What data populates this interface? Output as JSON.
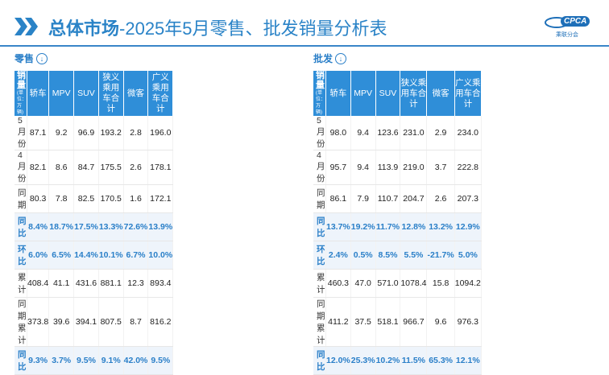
{
  "header": {
    "title_bold": "总体市场",
    "title_rest": "-2025年5月零售、批发销量分析表",
    "logo_text": "CPCA",
    "logo_sub": "乘联分会"
  },
  "retail": {
    "section_title": "零售",
    "col_header_first": "销量",
    "unit": "(单位：万辆)",
    "columns": [
      "轿车",
      "MPV",
      "SUV",
      "狭义乘用车合计",
      "微客",
      "广义乘用车合计"
    ],
    "rows": [
      {
        "label": "5月份",
        "values": [
          "87.1",
          "9.2",
          "96.9",
          "193.2",
          "2.8",
          "196.0"
        ]
      },
      {
        "label": "4月份",
        "values": [
          "82.1",
          "8.6",
          "84.7",
          "175.5",
          "2.6",
          "178.1"
        ]
      },
      {
        "label": "同期",
        "values": [
          "80.3",
          "7.8",
          "82.5",
          "170.5",
          "1.6",
          "172.1"
        ]
      },
      {
        "label": "同比",
        "values": [
          "8.4%",
          "18.7%",
          "17.5%",
          "13.3%",
          "72.6%",
          "13.9%"
        ]
      },
      {
        "label": "环比",
        "values": [
          "6.0%",
          "6.5%",
          "14.4%",
          "10.1%",
          "6.7%",
          "10.0%"
        ]
      },
      {
        "label": "累计",
        "values": [
          "408.4",
          "41.1",
          "431.6",
          "881.1",
          "12.3",
          "893.4"
        ]
      },
      {
        "label": "同期累计",
        "values": [
          "373.8",
          "39.6",
          "394.1",
          "807.5",
          "8.7",
          "816.2"
        ]
      },
      {
        "label": "同比",
        "values": [
          "9.3%",
          "3.7%",
          "9.5%",
          "9.1%",
          "42.0%",
          "9.5%"
        ]
      }
    ]
  },
  "wholesale": {
    "section_title": "批发",
    "col_header_first": "销量",
    "unit": "(单位：万辆)",
    "columns": [
      "轿车",
      "MPV",
      "SUV",
      "狭义乘用车合计",
      "微客",
      "广义乘用车合计"
    ],
    "rows": [
      {
        "label": "5月份",
        "values": [
          "98.0",
          "9.4",
          "123.6",
          "231.0",
          "2.9",
          "234.0"
        ]
      },
      {
        "label": "4月份",
        "values": [
          "95.7",
          "9.4",
          "113.9",
          "219.0",
          "3.7",
          "222.8"
        ]
      },
      {
        "label": "同期",
        "values": [
          "86.1",
          "7.9",
          "110.7",
          "204.7",
          "2.6",
          "207.3"
        ]
      },
      {
        "label": "同比",
        "values": [
          "13.7%",
          "19.2%",
          "11.7%",
          "12.8%",
          "13.2%",
          "12.9%"
        ]
      },
      {
        "label": "环比",
        "values": [
          "2.4%",
          "0.5%",
          "8.5%",
          "5.5%",
          "-21.7%",
          "5.0%"
        ]
      },
      {
        "label": "累计",
        "values": [
          "460.3",
          "47.0",
          "571.0",
          "1078.4",
          "15.8",
          "1094.2"
        ]
      },
      {
        "label": "同期累计",
        "values": [
          "411.2",
          "37.5",
          "518.1",
          "966.7",
          "9.6",
          "976.3"
        ]
      },
      {
        "label": "同比",
        "values": [
          "12.0%",
          "25.3%",
          "10.2%",
          "11.5%",
          "65.3%",
          "12.1%"
        ]
      }
    ]
  },
  "colors": {
    "accent": "#2f8ed8",
    "title": "#2a83c7",
    "highlight_bg": "#eef4fb"
  }
}
